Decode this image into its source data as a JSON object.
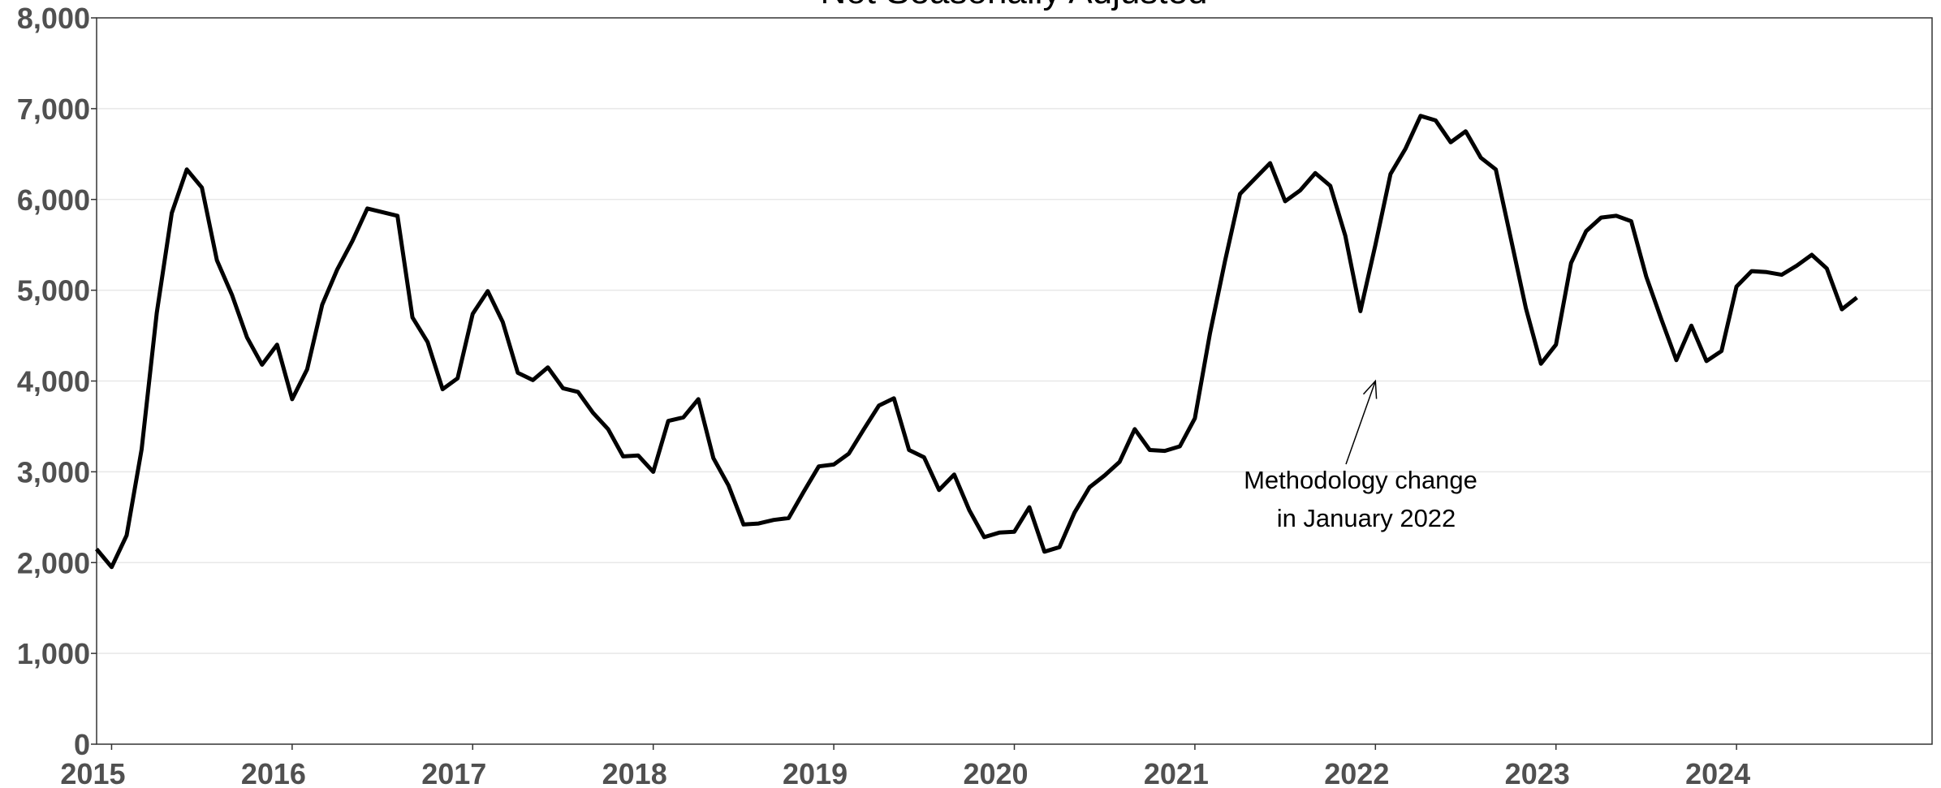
{
  "chart_data": {
    "type": "line",
    "title": "Not Seasonally Adjusted",
    "xlabel": "",
    "ylabel": "",
    "ylim": [
      0,
      8000
    ],
    "xlim": [
      2014.917,
      2025.083
    ],
    "grid": "horizontal",
    "legend": "none",
    "line_color": "#000000",
    "y_ticks": [
      0,
      1000,
      2000,
      3000,
      4000,
      5000,
      6000,
      7000,
      8000
    ],
    "y_tick_labels": [
      "0",
      "1,000",
      "2,000",
      "3,000",
      "4,000",
      "5,000",
      "6,000",
      "7,000",
      "8,000"
    ],
    "x_ticks": [
      2015,
      2016,
      2017,
      2018,
      2019,
      2020,
      2021,
      2022,
      2023,
      2024
    ],
    "x_tick_labels": [
      "2015",
      "2016",
      "2017",
      "2018",
      "2019",
      "2020",
      "2021",
      "2022",
      "2023",
      "2024"
    ],
    "series": [
      {
        "x_start": "2014-12",
        "frequency": "monthly",
        "values": [
          2150,
          1950,
          2300,
          3250,
          4750,
          5850,
          6330,
          6130,
          5330,
          4950,
          4480,
          4180,
          4400,
          3800,
          4130,
          4840,
          5230,
          5540,
          5900,
          5860,
          5820,
          4700,
          4430,
          3910,
          4030,
          4740,
          4990,
          4650,
          4090,
          4010,
          4150,
          3920,
          3880,
          3650,
          3470,
          3170,
          3180,
          3000,
          3560,
          3600,
          3800,
          3150,
          2850,
          2420,
          2430,
          2470,
          2490,
          2780,
          3060,
          3080,
          3200,
          3470,
          3730,
          3810,
          3240,
          3160,
          2800,
          2970,
          2580,
          2280,
          2330,
          2340,
          2610,
          2120,
          2170,
          2550,
          2830,
          2960,
          3110,
          3470,
          3240,
          3230,
          3280,
          3590,
          4520,
          5320,
          6060,
          6230,
          6400,
          5980,
          6100,
          6290,
          6150,
          5600,
          4770,
          5500,
          6280,
          6560,
          6920,
          6870,
          6630,
          6750,
          6460,
          6330,
          5570,
          4800,
          4190,
          4400,
          5300,
          5650,
          5800,
          5820,
          5760,
          5150,
          4680,
          4230,
          4610,
          4220,
          4330,
          5040,
          5210,
          5200,
          5170,
          5270,
          5390,
          5240,
          4790,
          4920
        ]
      }
    ],
    "annotation": {
      "lines": [
        "Methodology change",
        "in January 2022"
      ],
      "arrow_target": {
        "x": 2022.0,
        "y": 4000
      }
    }
  }
}
